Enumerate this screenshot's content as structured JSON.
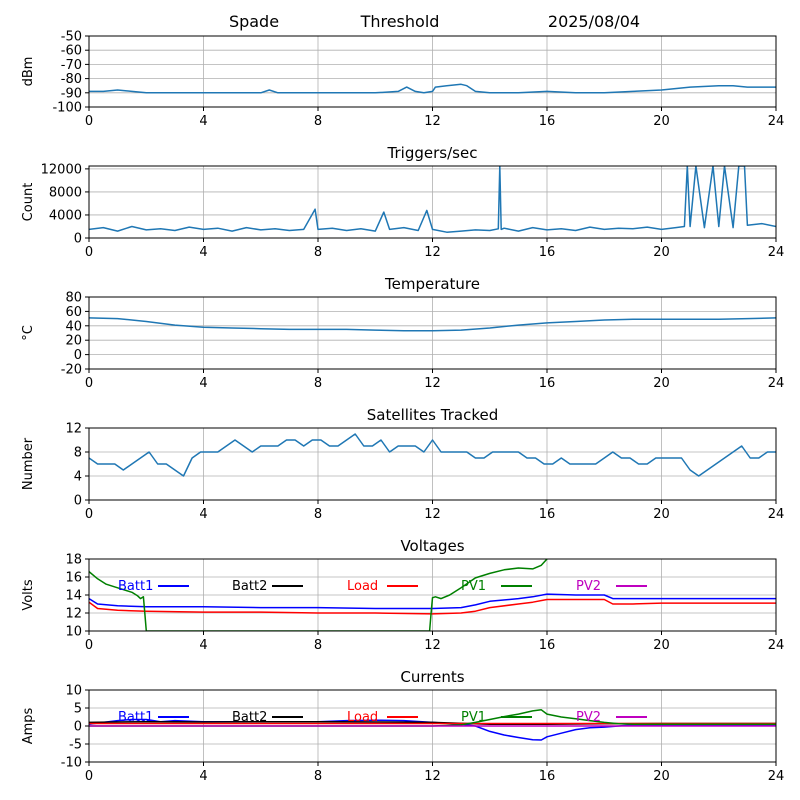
{
  "chart_data": [
    {
      "type": "line",
      "header": {
        "left": "Spade",
        "middle": "Threshold",
        "right": "2025/08/04"
      },
      "title": "",
      "xlabel": "",
      "ylabel": "dBm",
      "xlim": [
        0,
        24
      ],
      "ylim": [
        -100,
        -50
      ],
      "xticks": [
        0,
        4,
        8,
        12,
        16,
        20,
        24
      ],
      "yticks": [
        -100,
        -90,
        -80,
        -70,
        -60,
        -50
      ],
      "grid": true,
      "series": [
        {
          "color": "#1f77b4",
          "x": [
            0,
            0.5,
            1,
            1.5,
            2,
            3,
            4,
            5,
            6,
            6.3,
            6.6,
            7,
            8,
            9,
            10,
            10.8,
            11.1,
            11.4,
            11.7,
            12,
            12.1,
            12.5,
            13,
            13.2,
            13.5,
            14,
            15,
            16,
            17,
            18,
            19,
            20,
            21,
            22,
            22.5,
            23,
            23.5,
            24
          ],
          "y": [
            -89,
            -89,
            -88,
            -89,
            -90,
            -90,
            -90,
            -90,
            -90,
            -88,
            -90,
            -90,
            -90,
            -90,
            -90,
            -89,
            -86,
            -89,
            -90,
            -89,
            -86,
            -85,
            -84,
            -85,
            -89,
            -90,
            -90,
            -89,
            -90,
            -90,
            -89,
            -88,
            -86,
            -85,
            -85,
            -86,
            -86,
            -86
          ]
        }
      ]
    },
    {
      "type": "line",
      "title": "Triggers/sec",
      "xlabel": "",
      "ylabel": "Count",
      "xlim": [
        0,
        24
      ],
      "ylim": [
        0,
        12500
      ],
      "xticks": [
        0,
        4,
        8,
        12,
        16,
        20,
        24
      ],
      "yticks": [
        0,
        4000,
        8000,
        12000
      ],
      "grid": true,
      "series": [
        {
          "color": "#1f77b4",
          "x": [
            0,
            0.5,
            1,
            1.5,
            2,
            2.5,
            3,
            3.5,
            4,
            4.5,
            5,
            5.5,
            6,
            6.5,
            7,
            7.5,
            7.9,
            8,
            8.5,
            9,
            9.5,
            10,
            10.3,
            10.5,
            11,
            11.5,
            11.8,
            12,
            12.5,
            13,
            13.5,
            14,
            14.3,
            14.35,
            14.4,
            14.5,
            15,
            15.5,
            16,
            16.5,
            17,
            17.5,
            18,
            18.5,
            19,
            19.5,
            20,
            20.5,
            20.8,
            20.9,
            21,
            21.2,
            21.5,
            21.8,
            22,
            22.2,
            22.5,
            22.7,
            22.9,
            23,
            23.5,
            24
          ],
          "y": [
            1500,
            1800,
            1200,
            2000,
            1400,
            1600,
            1300,
            1900,
            1500,
            1700,
            1200,
            1800,
            1400,
            1600,
            1300,
            1500,
            5000,
            1500,
            1700,
            1300,
            1600,
            1200,
            4500,
            1500,
            1800,
            1300,
            4800,
            1500,
            1000,
            1200,
            1400,
            1300,
            1600,
            12500,
            1500,
            1700,
            1200,
            1800,
            1400,
            1600,
            1300,
            1900,
            1500,
            1700,
            1600,
            1900,
            1500,
            1800,
            2000,
            12500,
            2000,
            12500,
            1800,
            12500,
            2000,
            12500,
            1800,
            12500,
            12500,
            2200,
            2500,
            2000
          ]
        }
      ]
    },
    {
      "type": "line",
      "title": "Temperature",
      "xlabel": "",
      "ylabel": "°C",
      "xlim": [
        0,
        24
      ],
      "ylim": [
        -20,
        80
      ],
      "xticks": [
        0,
        4,
        8,
        12,
        16,
        20,
        24
      ],
      "yticks": [
        -20,
        0,
        20,
        40,
        60,
        80
      ],
      "grid": true,
      "series": [
        {
          "color": "#1f77b4",
          "x": [
            0,
            1,
            2,
            3,
            4,
            5,
            6,
            7,
            8,
            9,
            10,
            11,
            12,
            13,
            14,
            15,
            16,
            17,
            18,
            19,
            20,
            21,
            22,
            23,
            24
          ],
          "y": [
            51,
            50,
            46,
            41,
            38,
            37,
            36,
            35,
            35,
            35,
            34,
            33,
            33,
            34,
            37,
            41,
            44,
            46,
            48,
            49,
            49,
            49,
            49,
            50,
            51
          ]
        }
      ]
    },
    {
      "type": "line",
      "title": "Satellites Tracked",
      "xlabel": "",
      "ylabel": "Number",
      "xlim": [
        0,
        24
      ],
      "ylim": [
        0,
        12
      ],
      "xticks": [
        0,
        4,
        8,
        12,
        16,
        20,
        24
      ],
      "yticks": [
        0,
        4,
        8,
        12
      ],
      "grid": true,
      "series": [
        {
          "color": "#1f77b4",
          "x": [
            0,
            0.3,
            0.6,
            0.9,
            1.2,
            1.5,
            1.8,
            2.1,
            2.4,
            2.7,
            3.0,
            3.3,
            3.6,
            3.9,
            4.2,
            4.5,
            4.8,
            5.1,
            5.4,
            5.7,
            6.0,
            6.3,
            6.6,
            6.9,
            7.2,
            7.5,
            7.8,
            8.1,
            8.4,
            8.7,
            9.0,
            9.3,
            9.6,
            9.9,
            10.2,
            10.5,
            10.8,
            11.1,
            11.4,
            11.7,
            12.0,
            12.3,
            12.6,
            12.9,
            13.2,
            13.5,
            13.8,
            14.1,
            14.4,
            14.7,
            15.0,
            15.3,
            15.6,
            15.9,
            16.2,
            16.5,
            16.8,
            17.1,
            17.4,
            17.7,
            18.0,
            18.3,
            18.6,
            18.9,
            19.2,
            19.5,
            19.8,
            20.1,
            20.4,
            20.7,
            21.0,
            21.3,
            21.6,
            21.9,
            22.2,
            22.5,
            22.8,
            23.1,
            23.4,
            23.7,
            24.0
          ],
          "y": [
            7,
            6,
            6,
            6,
            5,
            6,
            7,
            8,
            6,
            6,
            5,
            4,
            7,
            8,
            8,
            8,
            9,
            10,
            9,
            8,
            9,
            9,
            9,
            10,
            10,
            9,
            10,
            10,
            9,
            9,
            10,
            11,
            9,
            9,
            10,
            8,
            9,
            9,
            9,
            8,
            10,
            8,
            8,
            8,
            8,
            7,
            7,
            8,
            8,
            8,
            8,
            7,
            7,
            6,
            6,
            7,
            6,
            6,
            6,
            6,
            7,
            8,
            7,
            7,
            6,
            6,
            7,
            7,
            7,
            7,
            5,
            4,
            5,
            6,
            7,
            8,
            9,
            7,
            7,
            8,
            8
          ]
        }
      ]
    },
    {
      "type": "line",
      "title": "Voltages",
      "xlabel": "",
      "ylabel": "Volts",
      "xlim": [
        0,
        24
      ],
      "ylim": [
        10,
        18
      ],
      "xticks": [
        0,
        4,
        8,
        12,
        16,
        20,
        24
      ],
      "yticks": [
        10,
        12,
        14,
        16,
        18
      ],
      "grid": true,
      "legend": "top, single row",
      "series": [
        {
          "name": "Batt1",
          "color": "#0000ff",
          "x": [
            0,
            0.3,
            1,
            2,
            4,
            6,
            8,
            10,
            12,
            13,
            13.5,
            14,
            15,
            15.5,
            16,
            17,
            18,
            18.3,
            19,
            20,
            22,
            24
          ],
          "y": [
            13.6,
            13,
            12.8,
            12.7,
            12.7,
            12.6,
            12.6,
            12.5,
            12.5,
            12.6,
            12.9,
            13.3,
            13.6,
            13.8,
            14.1,
            14,
            14,
            13.6,
            13.6,
            13.6,
            13.6,
            13.6
          ]
        },
        {
          "name": "Batt2",
          "color": "#000000",
          "x": [],
          "y": []
        },
        {
          "name": "Load",
          "color": "#ff0000",
          "x": [
            0,
            0.3,
            1,
            2,
            4,
            6,
            8,
            10,
            12,
            13,
            13.5,
            14,
            15,
            15.5,
            16,
            17,
            18,
            18.3,
            19,
            20,
            22,
            24
          ],
          "y": [
            13.2,
            12.5,
            12.3,
            12.2,
            12.1,
            12.1,
            12,
            12,
            11.9,
            12,
            12.2,
            12.6,
            13,
            13.2,
            13.5,
            13.5,
            13.5,
            13,
            13,
            13.1,
            13.1,
            13.1
          ]
        },
        {
          "name": "PV1",
          "color": "#008000",
          "x": [
            0,
            0.3,
            0.6,
            1,
            1.5,
            1.7,
            1.8,
            1.9,
            1.95,
            2.0,
            11.9,
            11.95,
            12.0,
            12.1,
            12.3,
            12.6,
            13,
            13.5,
            14,
            14.5,
            15,
            15.5,
            15.8,
            16
          ],
          "y": [
            16.6,
            15.8,
            15.2,
            14.8,
            14.3,
            13.9,
            13.6,
            13.8,
            12,
            10,
            10,
            12,
            13.7,
            13.8,
            13.6,
            14,
            14.8,
            15.9,
            16.4,
            16.8,
            17,
            16.9,
            17.3,
            18
          ]
        },
        {
          "name": "PV2",
          "color": "#bf00bf",
          "x": [],
          "y": []
        }
      ]
    },
    {
      "type": "line",
      "title": "Currents",
      "xlabel": "",
      "ylabel": "Amps",
      "xlim": [
        0,
        24
      ],
      "ylim": [
        -10,
        10
      ],
      "xticks": [
        0,
        4,
        8,
        12,
        16,
        20,
        24
      ],
      "yticks": [
        -10,
        -5,
        0,
        5,
        10
      ],
      "grid": true,
      "legend": "top, single row",
      "series": [
        {
          "name": "Batt1",
          "color": "#0000ff",
          "x": [
            0,
            0.5,
            1,
            1.5,
            2,
            2.5,
            3,
            4,
            5,
            6,
            7,
            8,
            9,
            10,
            11,
            12,
            13,
            13.5,
            14,
            14.5,
            15,
            15.5,
            15.8,
            16,
            16.5,
            17,
            17.5,
            18,
            18.5,
            19,
            20,
            24
          ],
          "y": [
            0.5,
            1,
            1.5,
            1.8,
            1.8,
            1.2,
            1.5,
            1.2,
            1.2,
            1.2,
            1.2,
            1.2,
            1.5,
            1.6,
            1.5,
            1,
            0.5,
            0,
            -1.5,
            -2.5,
            -3.2,
            -3.8,
            -3.9,
            -3,
            -2,
            -1,
            -0.5,
            -0.3,
            0,
            0.3,
            0.3,
            0.3
          ]
        },
        {
          "name": "Batt2",
          "color": "#000000",
          "x": [
            0,
            2,
            4,
            6,
            8,
            10,
            12,
            14,
            16,
            18,
            20,
            24
          ],
          "y": [
            1,
            1.2,
            1.1,
            1.2,
            1.2,
            1.1,
            1,
            0.5,
            0.5,
            0.6,
            0.7,
            0.7
          ]
        },
        {
          "name": "Load",
          "color": "#ff0000",
          "x": [
            0,
            4,
            8,
            12,
            16,
            20,
            24
          ],
          "y": [
            0.7,
            0.7,
            0.7,
            0.7,
            0.7,
            0.7,
            0.7
          ]
        },
        {
          "name": "PV1",
          "color": "#008000",
          "x": [
            0,
            12,
            13,
            13.5,
            14,
            14.5,
            15,
            15.5,
            15.8,
            16,
            16.5,
            17,
            17.5,
            18,
            18.5,
            19,
            20,
            24
          ],
          "y": [
            0,
            0,
            0.3,
            1,
            1.8,
            2.6,
            3.3,
            4.2,
            4.5,
            3.3,
            2.5,
            2,
            1.5,
            1,
            0.6,
            0.5,
            0.5,
            0.5
          ]
        },
        {
          "name": "PV2",
          "color": "#bf00bf",
          "x": [
            0,
            24
          ],
          "y": [
            0,
            0
          ]
        }
      ]
    }
  ]
}
